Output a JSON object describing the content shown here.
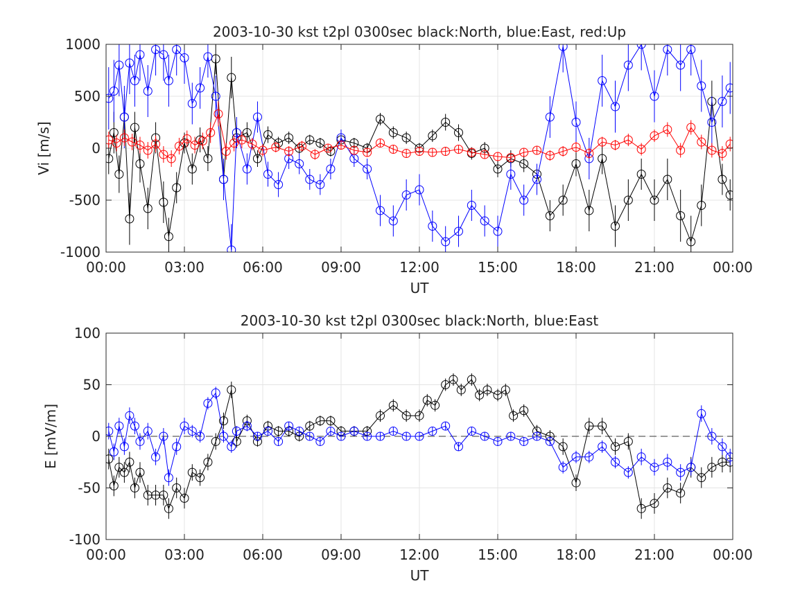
{
  "chart_data": [
    {
      "type": "line",
      "title": "2003-10-30 kst t2pl 0300sec black:North, blue:East, red:Up",
      "xlabel": "UT",
      "ylabel": "Vi [m/s]",
      "xlim": [
        0,
        24
      ],
      "ylim": [
        -1000,
        1000
      ],
      "xticks": [
        "00:00",
        "03:00",
        "06:00",
        "09:00",
        "12:00",
        "15:00",
        "18:00",
        "21:00",
        "00:00"
      ],
      "yticks": [
        "1000",
        "500",
        "0",
        "-500",
        "-1000"
      ],
      "grid": true,
      "series": [
        {
          "name": "North",
          "color": "#000000",
          "x": [
            0.1,
            0.3,
            0.5,
            0.7,
            0.9,
            1.1,
            1.3,
            1.6,
            1.9,
            2.2,
            2.4,
            2.7,
            3.0,
            3.3,
            3.6,
            3.9,
            4.2,
            4.5,
            4.8,
            5.0,
            5.4,
            5.8,
            6.2,
            6.6,
            7.0,
            7.4,
            7.8,
            8.2,
            8.6,
            9.0,
            9.5,
            10.0,
            10.5,
            11.0,
            11.5,
            12.0,
            12.5,
            13.0,
            13.5,
            14.0,
            14.5,
            15.0,
            15.5,
            16.0,
            16.5,
            17.0,
            17.5,
            18.0,
            18.5,
            19.0,
            19.5,
            20.0,
            20.5,
            21.0,
            21.5,
            22.0,
            22.4,
            22.8,
            23.2,
            23.6,
            23.9
          ],
          "values": [
            -100,
            150,
            -250,
            300,
            -680,
            200,
            -150,
            -580,
            100,
            -520,
            -850,
            -380,
            50,
            -200,
            80,
            -100,
            860,
            -300,
            680,
            100,
            150,
            -100,
            130,
            50,
            100,
            0,
            80,
            50,
            -30,
            80,
            50,
            0,
            280,
            150,
            100,
            0,
            120,
            250,
            150,
            -50,
            0,
            -200,
            -100,
            -150,
            -250,
            -650,
            -500,
            -150,
            -600,
            -100,
            -750,
            -500,
            -250,
            -500,
            -300,
            -650,
            -900,
            -550,
            450,
            -300,
            -450
          ],
          "yerr": [
            150,
            200,
            180,
            220,
            250,
            150,
            180,
            200,
            150,
            200,
            180,
            150,
            100,
            150,
            120,
            120,
            150,
            200,
            200,
            100,
            100,
            80,
            80,
            60,
            60,
            50,
            50,
            50,
            50,
            50,
            50,
            50,
            60,
            60,
            60,
            50,
            60,
            80,
            80,
            60,
            60,
            80,
            80,
            80,
            100,
            150,
            150,
            120,
            200,
            150,
            200,
            200,
            150,
            200,
            200,
            250,
            250,
            200,
            200,
            150,
            150
          ]
        },
        {
          "name": "East",
          "color": "#0000ff",
          "x": [
            0.1,
            0.3,
            0.5,
            0.7,
            0.9,
            1.1,
            1.3,
            1.6,
            1.9,
            2.2,
            2.4,
            2.7,
            3.0,
            3.3,
            3.6,
            3.9,
            4.2,
            4.5,
            4.8,
            5.0,
            5.4,
            5.8,
            6.2,
            6.6,
            7.0,
            7.4,
            7.8,
            8.2,
            8.6,
            9.0,
            9.5,
            10.0,
            10.5,
            11.0,
            11.5,
            12.0,
            12.5,
            13.0,
            13.5,
            14.0,
            14.5,
            15.0,
            15.5,
            16.0,
            16.5,
            17.0,
            17.5,
            18.0,
            18.5,
            19.0,
            19.5,
            20.0,
            20.5,
            21.0,
            21.5,
            22.0,
            22.4,
            22.8,
            23.2,
            23.6,
            23.9
          ],
          "values": [
            480,
            550,
            800,
            300,
            820,
            650,
            900,
            550,
            950,
            900,
            650,
            950,
            870,
            430,
            580,
            880,
            500,
            -300,
            -980,
            150,
            -200,
            300,
            -250,
            -350,
            -100,
            -150,
            -300,
            -350,
            -200,
            100,
            -100,
            -200,
            -600,
            -700,
            -450,
            -400,
            -750,
            -900,
            -800,
            -550,
            -700,
            -800,
            -250,
            -500,
            -300,
            300,
            980,
            250,
            -100,
            650,
            400,
            800,
            1000,
            500,
            950,
            800,
            950,
            600,
            250,
            450,
            580
          ],
          "yerr": [
            300,
            300,
            300,
            300,
            300,
            250,
            250,
            250,
            250,
            250,
            250,
            250,
            250,
            200,
            200,
            200,
            200,
            200,
            250,
            150,
            150,
            150,
            120,
            120,
            100,
            100,
            100,
            100,
            100,
            80,
            80,
            100,
            150,
            150,
            150,
            150,
            150,
            150,
            150,
            150,
            150,
            150,
            150,
            150,
            150,
            200,
            250,
            200,
            200,
            250,
            250,
            250,
            250,
            250,
            250,
            250,
            250,
            250,
            250,
            250,
            250
          ]
        },
        {
          "name": "Up",
          "color": "#ff0000",
          "x": [
            0.1,
            0.4,
            0.7,
            1.0,
            1.3,
            1.6,
            1.9,
            2.2,
            2.5,
            2.8,
            3.1,
            3.4,
            3.7,
            4.0,
            4.3,
            4.6,
            4.9,
            5.2,
            5.6,
            6.0,
            6.5,
            7.0,
            7.5,
            8.0,
            8.5,
            9.0,
            9.5,
            10.0,
            10.5,
            11.0,
            11.5,
            12.0,
            12.5,
            13.0,
            13.5,
            14.0,
            14.5,
            15.0,
            15.5,
            16.0,
            16.5,
            17.0,
            17.5,
            18.0,
            18.5,
            19.0,
            19.5,
            20.0,
            20.5,
            21.0,
            21.5,
            22.0,
            22.4,
            22.8,
            23.2,
            23.6,
            23.9
          ],
          "values": [
            80,
            50,
            100,
            60,
            30,
            -20,
            40,
            -60,
            -100,
            20,
            90,
            30,
            70,
            150,
            330,
            -30,
            50,
            80,
            40,
            -20,
            10,
            -30,
            20,
            -60,
            0,
            30,
            -20,
            -40,
            50,
            -10,
            -50,
            -30,
            -40,
            -30,
            -10,
            -40,
            -60,
            -80,
            -90,
            -40,
            -20,
            -70,
            -30,
            10,
            -50,
            60,
            30,
            80,
            -10,
            120,
            180,
            -20,
            200,
            60,
            -20,
            -50,
            40
          ],
          "yerr": [
            80,
            80,
            80,
            80,
            80,
            80,
            80,
            80,
            80,
            80,
            80,
            80,
            80,
            100,
            120,
            80,
            80,
            80,
            60,
            60,
            50,
            50,
            50,
            50,
            40,
            40,
            40,
            40,
            40,
            40,
            40,
            40,
            40,
            40,
            40,
            40,
            40,
            40,
            40,
            40,
            40,
            50,
            50,
            50,
            50,
            50,
            50,
            60,
            60,
            60,
            70,
            70,
            70,
            70,
            70,
            70,
            70
          ]
        }
      ]
    },
    {
      "type": "line",
      "title": "2003-10-30 kst t2pl 0300sec black:North, blue:East",
      "xlabel": "UT",
      "ylabel": "E [mV/m]",
      "xlim": [
        0,
        24
      ],
      "ylim": [
        -100,
        100
      ],
      "xticks": [
        "00:00",
        "03:00",
        "06:00",
        "09:00",
        "12:00",
        "15:00",
        "18:00",
        "21:00",
        "00:00"
      ],
      "yticks": [
        "100",
        "50",
        "0",
        "-50",
        "-100"
      ],
      "grid": true,
      "zero_line": "dashed",
      "series": [
        {
          "name": "North",
          "color": "#000000",
          "x": [
            0.1,
            0.3,
            0.5,
            0.7,
            0.9,
            1.1,
            1.3,
            1.6,
            1.9,
            2.2,
            2.4,
            2.7,
            3.0,
            3.3,
            3.6,
            3.9,
            4.2,
            4.5,
            4.8,
            5.0,
            5.4,
            5.8,
            6.2,
            6.6,
            7.0,
            7.4,
            7.8,
            8.2,
            8.6,
            9.0,
            9.5,
            10.0,
            10.5,
            11.0,
            11.5,
            12.0,
            12.3,
            12.6,
            13.0,
            13.3,
            13.6,
            14.0,
            14.3,
            14.6,
            15.0,
            15.3,
            15.6,
            16.0,
            16.5,
            17.0,
            17.5,
            18.0,
            18.5,
            19.0,
            19.5,
            20.0,
            20.5,
            21.0,
            21.5,
            22.0,
            22.4,
            22.8,
            23.2,
            23.6,
            23.9
          ],
          "values": [
            -22,
            -48,
            -30,
            -35,
            -25,
            -50,
            -35,
            -57,
            -57,
            -57,
            -70,
            -50,
            -60,
            -35,
            -40,
            -25,
            -5,
            15,
            45,
            -5,
            15,
            -5,
            10,
            5,
            5,
            0,
            10,
            15,
            15,
            5,
            5,
            5,
            20,
            30,
            20,
            20,
            35,
            30,
            50,
            55,
            45,
            55,
            40,
            45,
            40,
            45,
            20,
            25,
            5,
            0,
            -10,
            -45,
            10,
            10,
            -10,
            -5,
            -70,
            -65,
            -50,
            -55,
            -30,
            -40,
            -30,
            -25,
            -25
          ],
          "yerr": [
            10,
            10,
            10,
            10,
            10,
            10,
            10,
            10,
            10,
            10,
            10,
            10,
            10,
            8,
            8,
            8,
            8,
            8,
            8,
            6,
            6,
            5,
            5,
            5,
            5,
            5,
            5,
            5,
            5,
            5,
            5,
            5,
            6,
            6,
            6,
            6,
            6,
            6,
            6,
            6,
            6,
            6,
            6,
            6,
            6,
            6,
            6,
            6,
            6,
            6,
            8,
            8,
            8,
            8,
            8,
            8,
            10,
            10,
            10,
            10,
            10,
            10,
            10,
            10,
            10
          ]
        },
        {
          "name": "East",
          "color": "#0000ff",
          "x": [
            0.1,
            0.3,
            0.5,
            0.7,
            0.9,
            1.1,
            1.3,
            1.6,
            1.9,
            2.2,
            2.4,
            2.7,
            3.0,
            3.3,
            3.6,
            3.9,
            4.2,
            4.5,
            4.8,
            5.0,
            5.4,
            5.8,
            6.2,
            6.6,
            7.0,
            7.4,
            7.8,
            8.2,
            8.6,
            9.0,
            9.5,
            10.0,
            10.5,
            11.0,
            11.5,
            12.0,
            12.5,
            13.0,
            13.5,
            14.0,
            14.5,
            15.0,
            15.5,
            16.0,
            16.5,
            17.0,
            17.5,
            18.0,
            18.5,
            19.0,
            19.5,
            20.0,
            20.5,
            21.0,
            21.5,
            22.0,
            22.4,
            22.8,
            23.2,
            23.6,
            23.9
          ],
          "values": [
            5,
            -15,
            10,
            -10,
            20,
            10,
            -5,
            5,
            -20,
            0,
            -40,
            -10,
            10,
            5,
            0,
            32,
            42,
            0,
            -10,
            5,
            10,
            0,
            5,
            -5,
            10,
            5,
            0,
            -5,
            5,
            0,
            5,
            0,
            0,
            5,
            0,
            0,
            5,
            10,
            -10,
            5,
            0,
            -5,
            0,
            -5,
            0,
            -5,
            -30,
            -20,
            -20,
            -10,
            -25,
            -35,
            -20,
            -30,
            -25,
            -35,
            -30,
            22,
            0,
            -10,
            -20
          ],
          "yerr": [
            8,
            8,
            8,
            8,
            8,
            8,
            8,
            8,
            8,
            8,
            8,
            8,
            8,
            6,
            6,
            6,
            6,
            6,
            6,
            5,
            5,
            4,
            4,
            4,
            4,
            4,
            4,
            4,
            4,
            4,
            4,
            4,
            4,
            4,
            4,
            4,
            4,
            4,
            4,
            4,
            4,
            4,
            4,
            4,
            4,
            4,
            6,
            6,
            6,
            6,
            6,
            6,
            8,
            8,
            8,
            8,
            8,
            8,
            8,
            8,
            8
          ]
        }
      ]
    }
  ]
}
